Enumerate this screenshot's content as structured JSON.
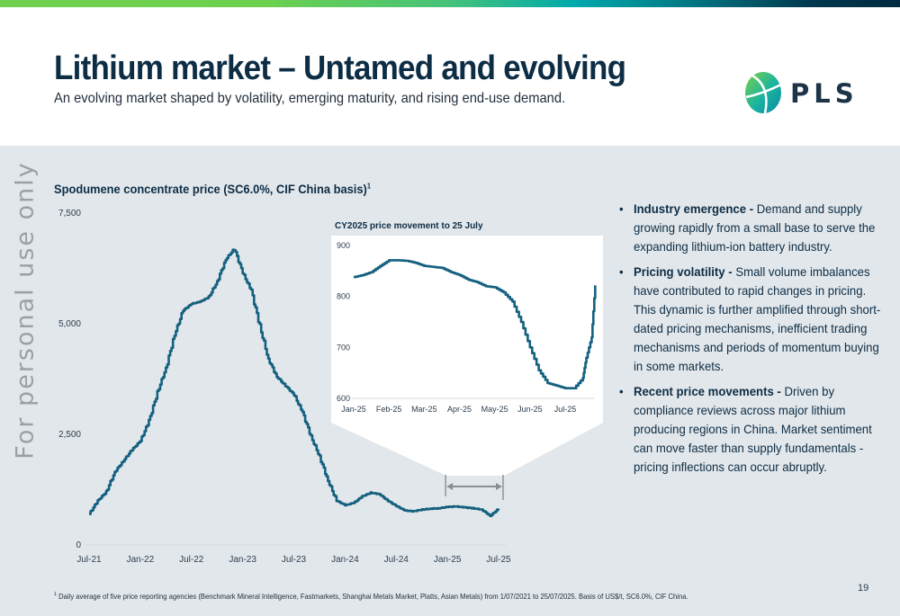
{
  "header": {
    "title": "Lithium market – Untamed and evolving",
    "subtitle": "An evolving market shaped by volatility, emerging maturity, and rising end-use demand.",
    "logo_text": "PLS"
  },
  "watermark": "For personal use only",
  "colors": {
    "line": "#14607f",
    "title": "#0d2d45",
    "panel_bg": "#e2e7eb",
    "inset_bg": "#ffffff",
    "bracket": "#8a8f94",
    "gradient": [
      "#6fd14e",
      "#00a9ad",
      "#002a3f"
    ]
  },
  "chart_data": [
    {
      "type": "line",
      "title": "Spodumene concentrate price (SC6.0%, CIF China basis)",
      "title_footnote_marker": "1",
      "xlabel": "",
      "ylabel": "",
      "ylim": [
        0,
        7500
      ],
      "yticks": [
        0,
        2500,
        5000,
        7500
      ],
      "ytick_labels": [
        "0",
        "2,500",
        "5,000",
        "7,500"
      ],
      "xtick_labels": [
        "Jul-21",
        "Jan-22",
        "Jul-22",
        "Jan-23",
        "Jul-23",
        "Jan-24",
        "Jul-24",
        "Jan-25",
        "Jul-25"
      ],
      "grid": false,
      "legend": "none",
      "series": [
        {
          "name": "SC6.0% CIF China (US$/t)",
          "x": [
            "Jul-21",
            "Aug-21",
            "Sep-21",
            "Oct-21",
            "Nov-21",
            "Dec-21",
            "Jan-22",
            "Feb-22",
            "Mar-22",
            "Apr-22",
            "May-22",
            "Jun-22",
            "Jul-22",
            "Aug-22",
            "Sep-22",
            "Oct-22",
            "Nov-22",
            "Dec-22",
            "Jan-23",
            "Feb-23",
            "Mar-23",
            "Apr-23",
            "May-23",
            "Jun-23",
            "Jul-23",
            "Aug-23",
            "Sep-23",
            "Oct-23",
            "Nov-23",
            "Dec-23",
            "Jan-24",
            "Feb-24",
            "Mar-24",
            "Apr-24",
            "May-24",
            "Jun-24",
            "Jul-24",
            "Aug-24",
            "Sep-24",
            "Oct-24",
            "Nov-24",
            "Dec-24",
            "Jan-25",
            "Feb-25",
            "Mar-25",
            "Apr-25",
            "May-25",
            "Jun-25",
            "Jul-25"
          ],
          "values": [
            700,
            1000,
            1200,
            1650,
            1900,
            2150,
            2350,
            2800,
            3450,
            4000,
            4750,
            5300,
            5450,
            5500,
            5600,
            5950,
            6450,
            6700,
            6150,
            5750,
            4950,
            4200,
            3800,
            3600,
            3400,
            3000,
            2450,
            2000,
            1450,
            1000,
            900,
            950,
            1100,
            1180,
            1150,
            1000,
            880,
            780,
            760,
            800,
            820,
            830,
            860,
            870,
            850,
            830,
            800,
            660,
            820
          ]
        }
      ]
    },
    {
      "type": "line",
      "title": "CY2025 price movement to 25 July",
      "xlabel": "",
      "ylabel": "",
      "ylim": [
        600,
        900
      ],
      "yticks": [
        600,
        700,
        800,
        900
      ],
      "ytick_labels": [
        "600",
        "700",
        "800",
        "900"
      ],
      "xtick_labels": [
        "Jan-25",
        "Feb-25",
        "Mar-25",
        "Apr-25",
        "May-25",
        "Jun-25",
        "Jul-25"
      ],
      "grid": false,
      "legend": "none",
      "series": [
        {
          "name": "SC6.0% CIF China (US$/t)",
          "x_months_from_jan25": [
            0,
            0.25,
            0.5,
            0.75,
            1.0,
            1.25,
            1.5,
            1.75,
            2.0,
            2.25,
            2.5,
            2.75,
            3.0,
            3.25,
            3.5,
            3.75,
            4.0,
            4.25,
            4.5,
            4.75,
            5.0,
            5.25,
            5.5,
            5.75,
            6.0,
            6.25,
            6.5,
            6.6,
            6.75,
            6.85
          ],
          "values": [
            838,
            842,
            848,
            860,
            871,
            871,
            870,
            866,
            860,
            858,
            856,
            848,
            842,
            833,
            828,
            820,
            818,
            808,
            790,
            750,
            700,
            655,
            630,
            625,
            620,
            620,
            640,
            680,
            720,
            822
          ]
        }
      ]
    }
  ],
  "zoom_bracket": {
    "from": "Jan-25",
    "to": "Jul-25"
  },
  "bullets": [
    {
      "heading": "Industry emergence - ",
      "text": " Demand and supply growing rapidly from a small base to serve the expanding lithium-ion battery industry."
    },
    {
      "heading": "Pricing volatility - ",
      "text": "Small volume imbalances have contributed to rapid changes in pricing. This dynamic is further amplified through short-dated pricing mechanisms, inefficient trading mechanisms and periods of momentum buying in some markets."
    },
    {
      "heading": "Recent price movements - ",
      "text": "Driven by compliance reviews across major lithium producing regions in China. Market sentiment can move faster than supply fundamentals - pricing inflections can occur abruptly."
    }
  ],
  "bullet_glyph": "•",
  "footnote": {
    "marker": "1",
    "text": " Daily average of five price reporting agencies (Benchmark Mineral Intelligence, Fastmarkets, Shanghai Metals Market, Platts, Asian Metals) from 1/07/2021 to 25/07/2025. Basis of US$/t, SC6.0%, CIF China."
  },
  "page_number": "19"
}
